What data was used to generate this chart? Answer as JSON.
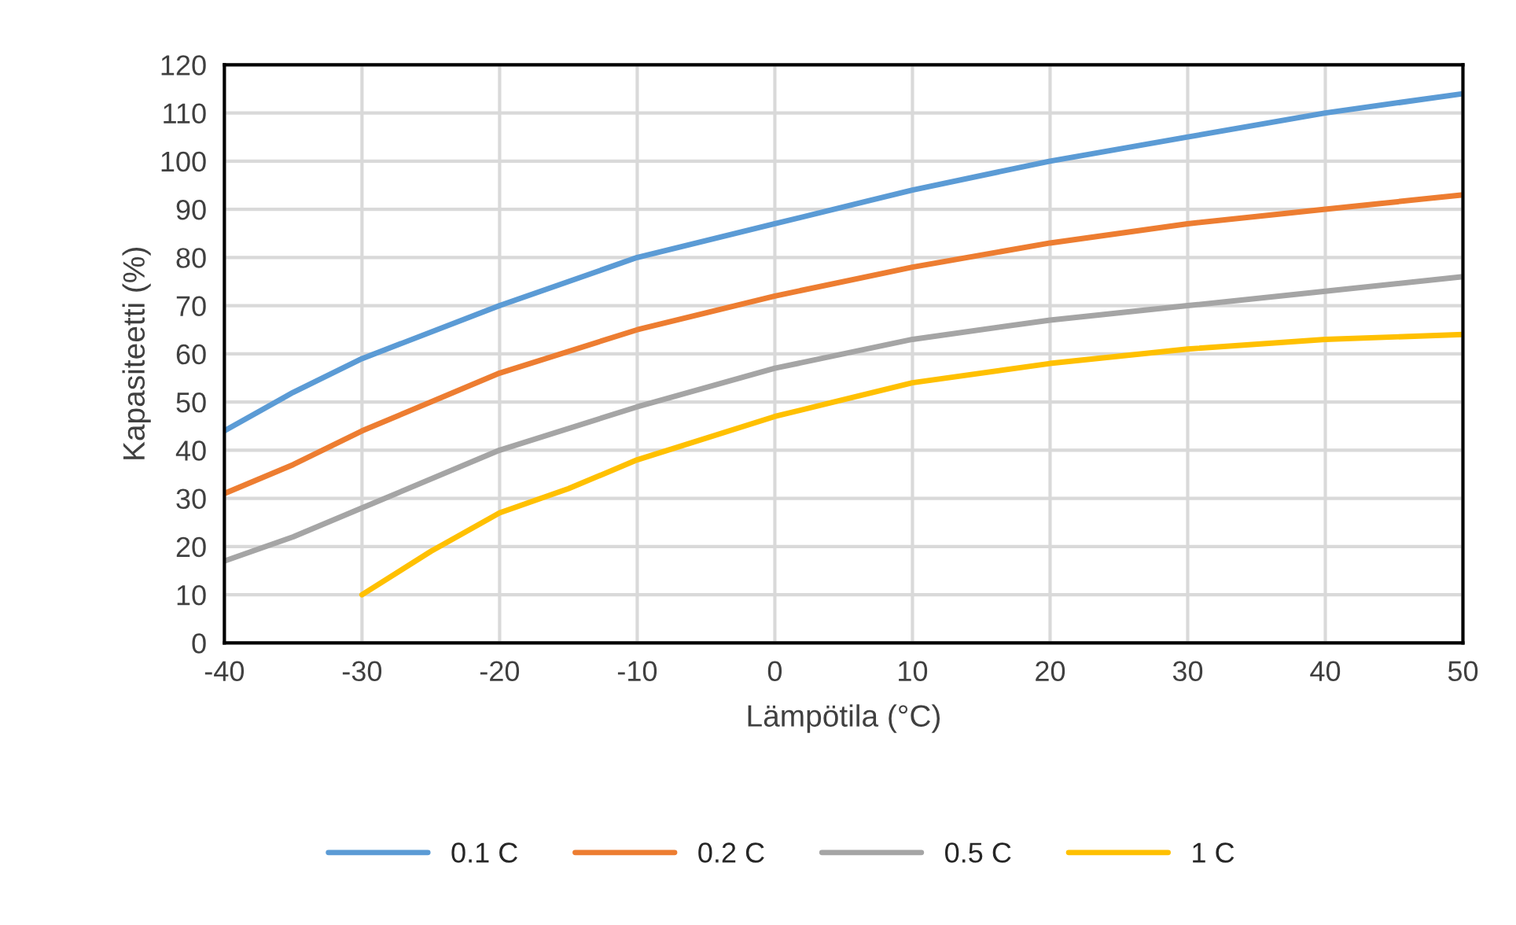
{
  "chart_data": {
    "type": "line",
    "xlabel": "Lämpötila (°C)",
    "ylabel": "Kapasiteetti (%)",
    "xlim": [
      -40,
      50
    ],
    "xticks": [
      -40,
      -30,
      -20,
      -10,
      0,
      10,
      20,
      30,
      40,
      50
    ],
    "ylim": [
      0,
      120
    ],
    "yticks": [
      0,
      10,
      20,
      30,
      40,
      50,
      60,
      70,
      80,
      90,
      100,
      110,
      120
    ],
    "grid": true,
    "legend": "bottom",
    "marker": "none",
    "line_style": "solid",
    "series": [
      {
        "name": "0.1 C",
        "color": "#5b9bd5",
        "x": [
          -40,
          -35,
          -30,
          -20,
          -10,
          0,
          10,
          20,
          30,
          40,
          50
        ],
        "values": [
          44,
          52,
          59,
          70,
          80,
          87,
          94,
          100,
          105,
          110,
          114
        ]
      },
      {
        "name": "0.2 C",
        "color": "#ed7d31",
        "x": [
          -40,
          -35,
          -30,
          -20,
          -10,
          0,
          10,
          20,
          30,
          40,
          50
        ],
        "values": [
          31,
          37,
          44,
          56,
          65,
          72,
          78,
          83,
          87,
          90,
          93
        ]
      },
      {
        "name": "0.5 C",
        "color": "#a5a5a5",
        "x": [
          -40,
          -35,
          -30,
          -20,
          -10,
          0,
          10,
          20,
          30,
          40,
          50
        ],
        "values": [
          17,
          22,
          28,
          40,
          49,
          57,
          63,
          67,
          70,
          73,
          76
        ]
      },
      {
        "name": "1 C",
        "color": "#ffc000",
        "x": [
          -30,
          -25,
          -20,
          -15,
          -10,
          0,
          10,
          20,
          30,
          40,
          50
        ],
        "values": [
          10,
          19,
          27,
          32,
          38,
          47,
          54,
          58,
          61,
          63,
          64
        ]
      }
    ]
  }
}
